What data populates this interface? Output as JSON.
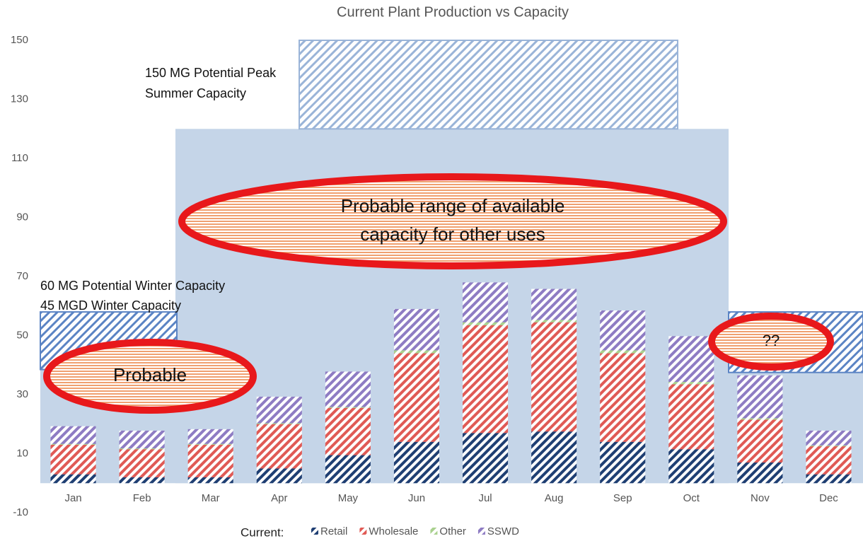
{
  "chart_data": {
    "type": "bar",
    "title": "Current Plant Production vs Capacity",
    "categories": [
      "Jan",
      "Feb",
      "Mar",
      "Apr",
      "May",
      "Jun",
      "Jul",
      "Aug",
      "Sep",
      "Oct",
      "Nov",
      "Dec"
    ],
    "series": [
      {
        "name": "Retail",
        "color": "#1f3f73",
        "values": [
          3,
          2,
          2,
          5,
          9.5,
          14,
          17,
          17.5,
          14,
          11.5,
          7,
          3
        ]
      },
      {
        "name": "Wholesale",
        "color": "#e05a55",
        "values": [
          10,
          9.5,
          11,
          15,
          16,
          30,
          36.5,
          37,
          30,
          22,
          14.5,
          9.5
        ]
      },
      {
        "name": "Other",
        "color": "#a9d18e",
        "values": [
          0.3,
          0.3,
          0.3,
          0.3,
          0.3,
          1,
          1,
          0.8,
          1,
          0.8,
          0.5,
          0.3
        ]
      },
      {
        "name": "SSWD",
        "color": "#8e7cc3",
        "values": [
          6,
          6,
          5,
          9,
          12,
          14,
          13.5,
          10.5,
          13.5,
          15.5,
          14.5,
          5
        ]
      }
    ],
    "legend_title": "Current:",
    "ylim": [
      -10,
      150
    ],
    "yticks": [
      -10,
      10,
      30,
      50,
      70,
      90,
      110,
      130,
      150
    ],
    "regions": [
      {
        "ylim": [
          0,
          38.5
        ],
        "color": "#c5d5e8"
      },
      {
        "ylim": [
          0,
          120
        ],
        "color": "#c5d5e8"
      },
      {
        "ylim": [
          120,
          150
        ],
        "color": "#9ab4d8"
      },
      {
        "ylim": [
          38.5,
          58
        ],
        "color": "#5b84c4"
      },
      {
        "ylim": [
          37.5,
          58
        ],
        "color": "#5b84c4"
      }
    ],
    "peak_label": [
      "150 MG Potential Peak",
      "Summer Capacity"
    ],
    "winter_label": [
      "60 MG Potential Winter Capacity",
      "45 MGD Winter Capacity"
    ],
    "ellipses": [
      {
        "lines": [
          "Probable range of available",
          "capacity for other uses"
        ]
      },
      {
        "lines": [
          "Probable"
        ]
      },
      {
        "lines": [
          "??"
        ]
      }
    ]
  }
}
